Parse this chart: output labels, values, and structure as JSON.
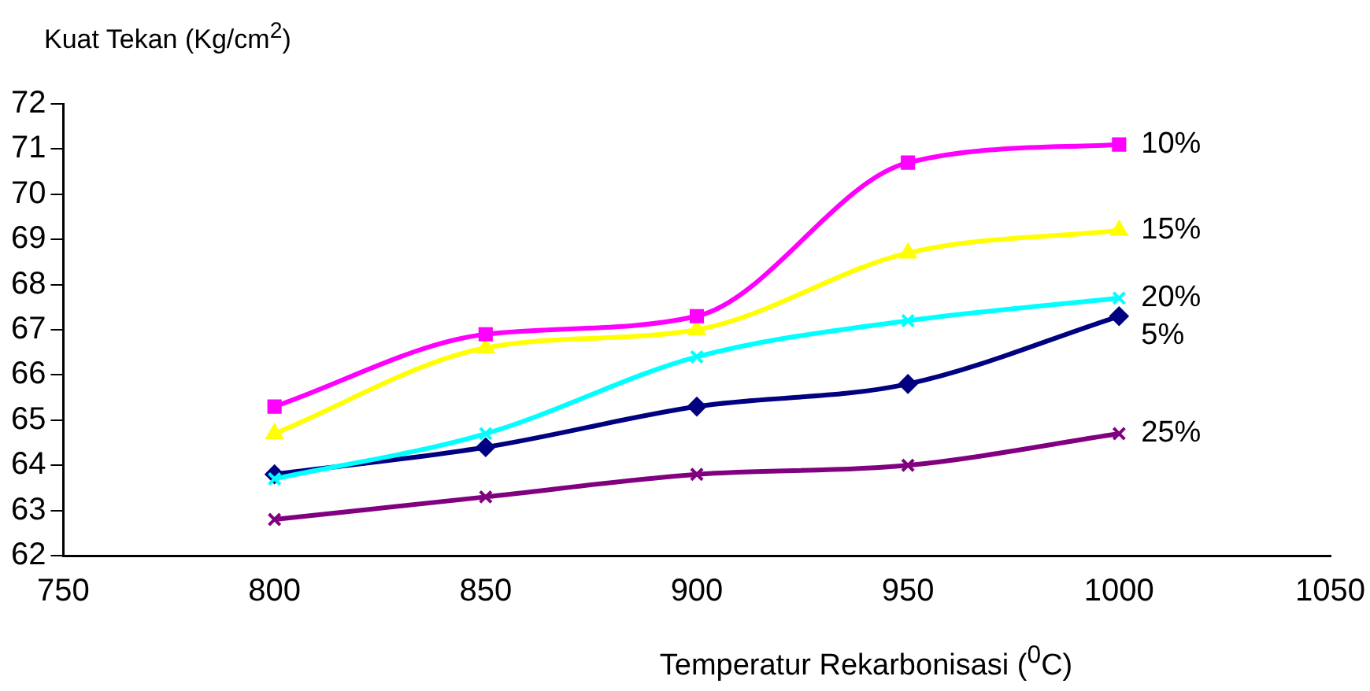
{
  "chart_data": {
    "type": "line",
    "ylabel": "Kuat Tekan (Kg/cm$^{2}$)",
    "xlabel": "Temperatur Rekarbonisasi ($^{0}$C)",
    "x": [
      800,
      850,
      900,
      950,
      1000
    ],
    "xlim": [
      750,
      1050
    ],
    "xticks": [
      750,
      800,
      850,
      900,
      950,
      1000,
      1050
    ],
    "ylim": [
      62,
      72
    ],
    "yticks": [
      62,
      63,
      64,
      65,
      66,
      67,
      68,
      69,
      70,
      71,
      72
    ],
    "grid": false,
    "legend": false,
    "series": [
      {
        "name": "10%",
        "color": "#ff00ff",
        "marker": "square",
        "values": [
          65.3,
          66.9,
          67.3,
          70.7,
          71.1
        ]
      },
      {
        "name": "15%",
        "color": "#ffff00",
        "marker": "triangle",
        "values": [
          64.7,
          66.6,
          67.0,
          68.7,
          69.2
        ]
      },
      {
        "name": "20%",
        "color": "#00ffff",
        "marker": "cross",
        "values": [
          63.7,
          64.7,
          66.4,
          67.2,
          67.7
        ]
      },
      {
        "name": "5%",
        "color": "#000080",
        "marker": "diamond",
        "values": [
          63.8,
          64.4,
          65.3,
          65.8,
          67.3
        ]
      },
      {
        "name": "25%",
        "color": "#800080",
        "marker": "cross",
        "values": [
          62.8,
          63.3,
          63.8,
          64.0,
          64.7
        ]
      }
    ]
  }
}
